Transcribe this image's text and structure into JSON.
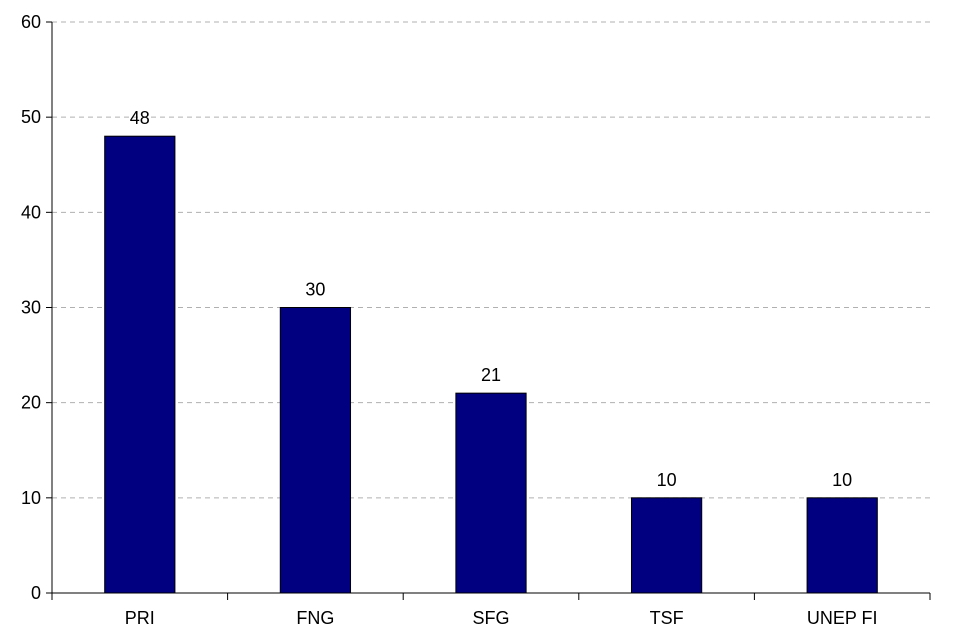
{
  "chart_data": {
    "type": "bar",
    "categories": [
      "PRI",
      "FNG",
      "SFG",
      "TSF",
      "UNEP FI"
    ],
    "values": [
      48,
      30,
      21,
      10,
      10
    ],
    "data_labels": [
      "48",
      "30",
      "21",
      "10",
      "10"
    ],
    "title": "",
    "xlabel": "",
    "ylabel": "",
    "ylim": [
      0,
      60
    ],
    "yticks": [
      0,
      10,
      20,
      30,
      40,
      50,
      60
    ],
    "ytick_labels": [
      "0",
      "10",
      "20",
      "30",
      "40",
      "50",
      "60"
    ],
    "grid": "horizontal-dashed",
    "legend": "none",
    "bar_color": "#000080"
  }
}
